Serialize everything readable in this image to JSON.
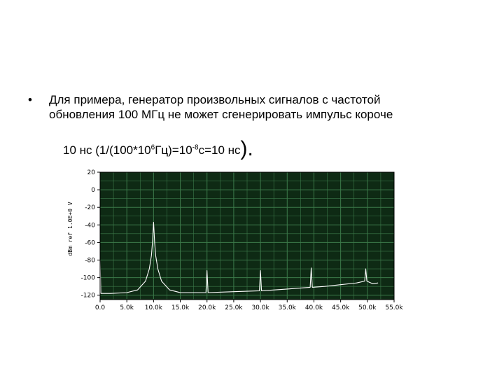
{
  "slide": {
    "bullet_symbol": "•",
    "paragraph_line1": "Для примера, генератор произвольных сигналов с частотой",
    "paragraph_line2": "обновления 100 МГц не может сгенерировать импульс короче",
    "formula": {
      "part1": "10 нс (1/(100*10",
      "sup1": "6",
      "part2": "Гц)=10",
      "sup2": "-8",
      "part3": "с=10 нс",
      "close_paren": ")",
      "period": "."
    }
  },
  "colors": {
    "plot_background": "#0e2a14",
    "grid": "#3c7a4a",
    "trace": "#ffffff",
    "axis_text": "#000000"
  },
  "chart_data": {
    "type": "line",
    "ylabel": "dBm ref 1.0E+0 V",
    "xlim": [
      0,
      55000
    ],
    "ylim": [
      -125,
      20
    ],
    "x_ticks": [
      "0.0",
      "5.0k",
      "10.0k",
      "15.0k",
      "20.0k",
      "25.0k",
      "30.0k",
      "35.0k",
      "40.0k",
      "45.0k",
      "50.0k",
      "55.0k"
    ],
    "x_tick_values": [
      0,
      5000,
      10000,
      15000,
      20000,
      25000,
      30000,
      35000,
      40000,
      45000,
      50000,
      55000
    ],
    "y_ticks": [
      "20",
      "0",
      "-20",
      "-40",
      "-60",
      "-80",
      "-100",
      "-120"
    ],
    "y_tick_values": [
      20,
      0,
      -20,
      -40,
      -60,
      -80,
      -100,
      -120
    ],
    "grid": true,
    "series": [
      {
        "values": [
          [
            0,
            -80
          ],
          [
            150,
            -118
          ],
          [
            2000,
            -118
          ],
          [
            5000,
            -117
          ],
          [
            7000,
            -114
          ],
          [
            8500,
            -104
          ],
          [
            9200,
            -90
          ],
          [
            9600,
            -75
          ],
          [
            9800,
            -60
          ],
          [
            10000,
            -37
          ],
          [
            10200,
            -60
          ],
          [
            10400,
            -75
          ],
          [
            10800,
            -90
          ],
          [
            11500,
            -104
          ],
          [
            13000,
            -114
          ],
          [
            15000,
            -117
          ],
          [
            19800,
            -117
          ],
          [
            20000,
            -92
          ],
          [
            20200,
            -117
          ],
          [
            25000,
            -116
          ],
          [
            29800,
            -115
          ],
          [
            30000,
            -92
          ],
          [
            30200,
            -115
          ],
          [
            35000,
            -113
          ],
          [
            39300,
            -111
          ],
          [
            39500,
            -89
          ],
          [
            39700,
            -111
          ],
          [
            42000,
            -110
          ],
          [
            45000,
            -108
          ],
          [
            48000,
            -106
          ],
          [
            49500,
            -104
          ],
          [
            49700,
            -90
          ],
          [
            49900,
            -104
          ],
          [
            51000,
            -107
          ],
          [
            52000,
            -106
          ]
        ]
      }
    ]
  }
}
